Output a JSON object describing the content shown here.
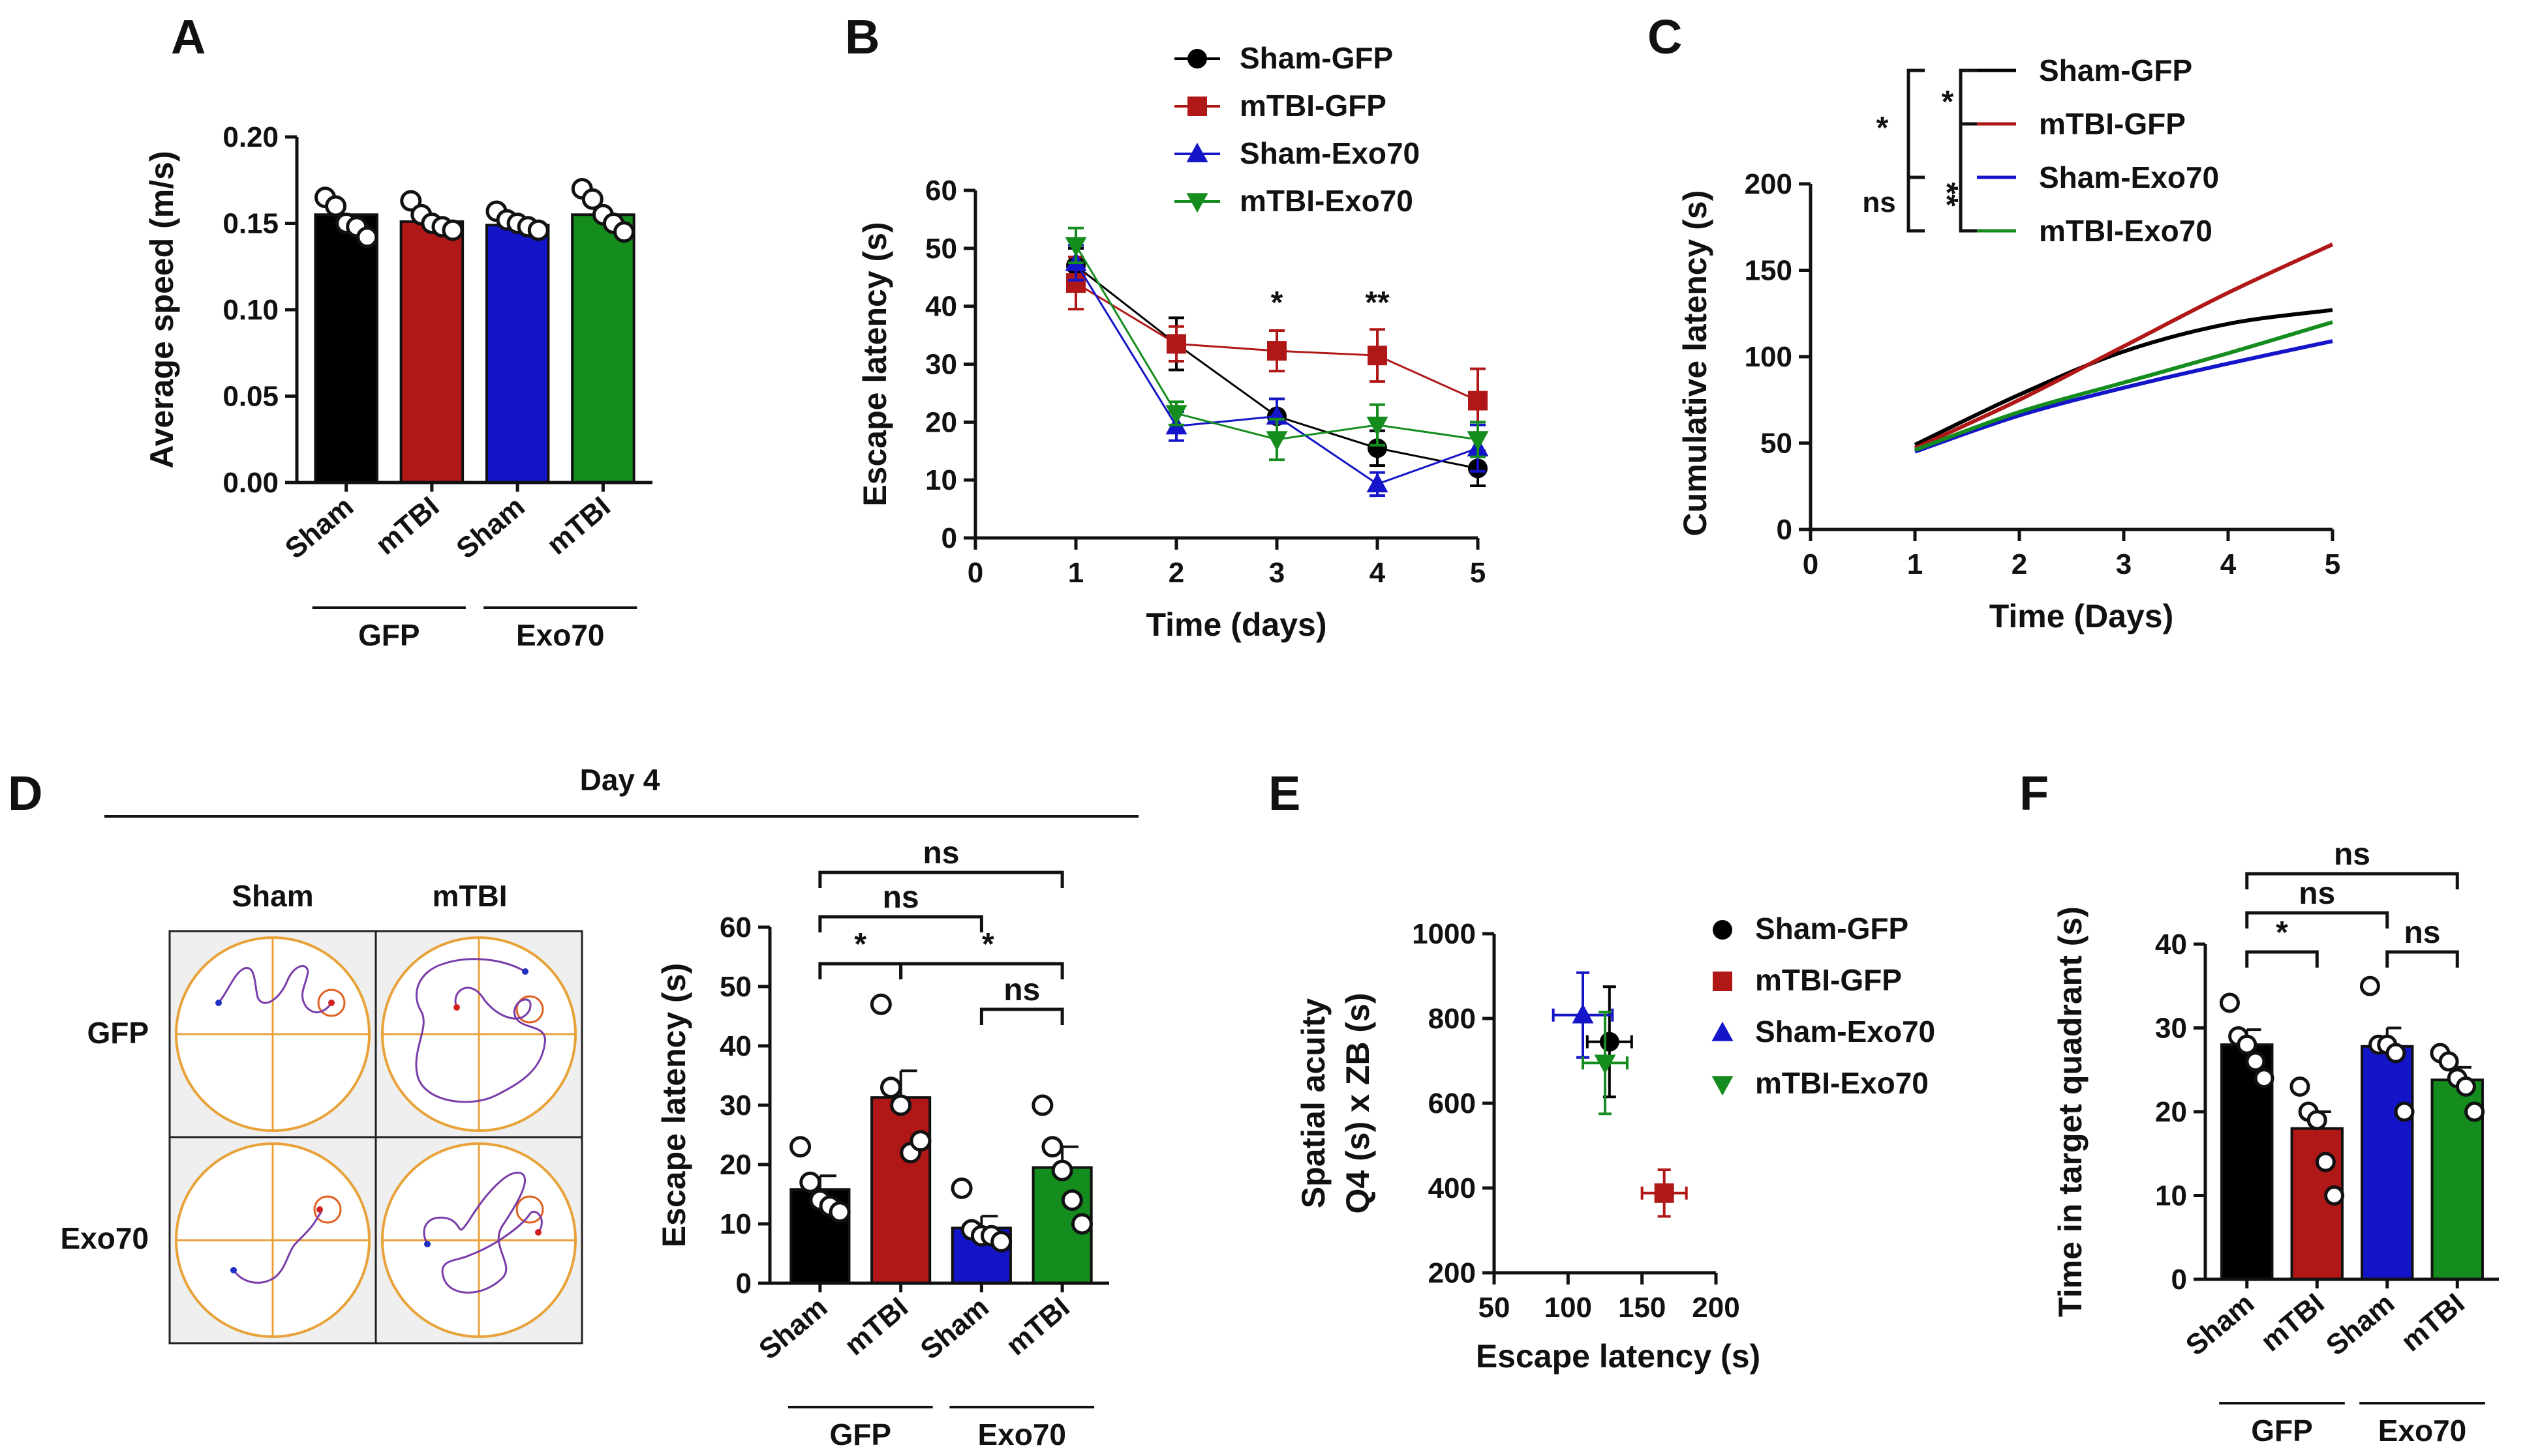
{
  "colors": {
    "sham_gfp": "#000000",
    "mtbi_gfp": "#b01818",
    "sham_exo70": "#1414c8",
    "mtbi_exo70": "#148c1e"
  },
  "panel_labels": {
    "a": "A",
    "b": "B",
    "c": "C",
    "d": "D",
    "e": "E",
    "f": "F"
  },
  "group_labels": {
    "sham": "Sham",
    "mtbi": "mTBI",
    "gfp": "GFP",
    "exo70": "Exo70",
    "day4": "Day 4"
  },
  "chart_data": [
    {
      "id": "A",
      "type": "bar",
      "ylabel": "Average speed (m/s)",
      "ylim": [
        0,
        0.2
      ],
      "yticks": [
        "0.00",
        "0.05",
        "0.10",
        "0.15",
        "0.20"
      ],
      "categories": [
        "Sham",
        "mTBI",
        "Sham",
        "mTBI"
      ],
      "groups": [
        "GFP",
        "GFP",
        "Exo70",
        "Exo70"
      ],
      "values": [
        0.155,
        0.151,
        0.149,
        0.155
      ],
      "points": [
        [
          0.165,
          0.16,
          0.15,
          0.148,
          0.142
        ],
        [
          0.163,
          0.155,
          0.15,
          0.148,
          0.146
        ],
        [
          0.157,
          0.152,
          0.15,
          0.148,
          0.146
        ],
        [
          0.17,
          0.164,
          0.155,
          0.15,
          0.145
        ]
      ]
    },
    {
      "id": "B",
      "type": "line",
      "xlabel": "Time (days)",
      "ylabel": "Escape latency (s)",
      "xlim": [
        0,
        5
      ],
      "ylim": [
        0,
        60
      ],
      "xticks": [
        "0",
        "1",
        "2",
        "3",
        "4",
        "5"
      ],
      "yticks": [
        "0",
        "10",
        "20",
        "30",
        "40",
        "50",
        "60"
      ],
      "x": [
        1,
        2,
        3,
        4,
        5
      ],
      "series": [
        {
          "name": "Sham-GFP",
          "marker": "circle",
          "values": [
            47,
            33.5,
            21,
            15.5,
            12
          ],
          "errors": [
            3,
            4.5,
            3,
            3,
            3
          ]
        },
        {
          "name": "mTBI-GFP",
          "marker": "square",
          "values": [
            44,
            33.5,
            32.3,
            31.5,
            23.7
          ],
          "errors": [
            4.5,
            3,
            3.5,
            4.5,
            5.5
          ]
        },
        {
          "name": "Sham-Exo70",
          "marker": "triangle-up",
          "values": [
            47.5,
            19.3,
            21,
            9.3,
            15.5
          ],
          "errors": [
            3,
            2.5,
            3,
            2,
            4
          ]
        },
        {
          "name": "mTBI-Exo70",
          "marker": "triangle-down",
          "values": [
            50.5,
            21.5,
            17,
            19.5,
            17
          ],
          "errors": [
            3,
            2,
            3.5,
            3.5,
            3
          ]
        }
      ],
      "annotations": [
        {
          "x": 3,
          "text": "*"
        },
        {
          "x": 4,
          "text": "**"
        }
      ]
    },
    {
      "id": "C",
      "type": "line",
      "xlabel": "Time (Days)",
      "ylabel": "Cumulative latency (s)",
      "xlim": [
        0,
        5
      ],
      "ylim": [
        0,
        200
      ],
      "xticks": [
        "0",
        "1",
        "2",
        "3",
        "4",
        "5"
      ],
      "yticks": [
        "0",
        "50",
        "100",
        "150",
        "200"
      ],
      "x": [
        1,
        2,
        3,
        4,
        5
      ],
      "series": [
        {
          "name": "Sham-GFP",
          "values": [
            49,
            78,
            103,
            119,
            127
          ]
        },
        {
          "name": "mTBI-GFP",
          "values": [
            47,
            75,
            106,
            137,
            165
          ]
        },
        {
          "name": "Sham-Exo70",
          "values": [
            45,
            66,
            82,
            96,
            109
          ]
        },
        {
          "name": "mTBI-Exo70",
          "values": [
            46,
            68,
            85,
            102,
            120
          ]
        }
      ],
      "significance": [
        {
          "pair": "Sham-GFP vs mTBI-GFP",
          "text": "*"
        },
        {
          "pair": "mTBI-GFP vs Sham-Exo70",
          "text": "**"
        },
        {
          "pair": "Sham-GFP vs Sham-Exo70",
          "text": "*"
        },
        {
          "pair": "Sham-GFP vs mTBI-Exo70",
          "text": "ns"
        }
      ]
    },
    {
      "id": "D",
      "type": "bar",
      "ylabel": "Escape latency (s)",
      "ylim": [
        0,
        60
      ],
      "yticks": [
        "0",
        "10",
        "20",
        "30",
        "40",
        "50",
        "60"
      ],
      "categories": [
        "Sham",
        "mTBI",
        "Sham",
        "mTBI"
      ],
      "groups": [
        "GFP",
        "GFP",
        "Exo70",
        "Exo70"
      ],
      "values": [
        15.8,
        31.3,
        9.3,
        19.5
      ],
      "errors": [
        2.3,
        4.5,
        2.0,
        3.5
      ],
      "points": [
        [
          23,
          17,
          14,
          13,
          12
        ],
        [
          47,
          33,
          30,
          22,
          24
        ],
        [
          16,
          9,
          8,
          8,
          7
        ],
        [
          30,
          23,
          19,
          14,
          10
        ]
      ],
      "significance": [
        {
          "from": 0,
          "to": 3,
          "text": "ns"
        },
        {
          "from": 0,
          "to": 2,
          "text": "ns"
        },
        {
          "from": 0,
          "to": 1,
          "text": "*"
        },
        {
          "from": 1,
          "to": 3,
          "text": "*"
        },
        {
          "from": 2,
          "to": 3,
          "text": "ns"
        }
      ]
    },
    {
      "id": "E",
      "type": "scatter",
      "xlabel": "Escape latency (s)",
      "ylabel_line1": "Spatial acuity",
      "ylabel_line2": "Q4 (s) x ZB (s)",
      "xlim": [
        50,
        200
      ],
      "ylim": [
        200,
        1000
      ],
      "xticks": [
        "50",
        "100",
        "150",
        "200"
      ],
      "yticks": [
        "200",
        "400",
        "600",
        "800",
        "1000"
      ],
      "series": [
        {
          "name": "Sham-GFP",
          "marker": "circle",
          "x": 128,
          "y": 745,
          "xerr": 15,
          "yerr": 130
        },
        {
          "name": "mTBI-GFP",
          "marker": "square",
          "x": 165,
          "y": 388,
          "xerr": 15,
          "yerr": 55
        },
        {
          "name": "Sham-Exo70",
          "marker": "triangle-up",
          "x": 110,
          "y": 808,
          "xerr": 20,
          "yerr": 100
        },
        {
          "name": "mTBI-Exo70",
          "marker": "triangle-down",
          "x": 125,
          "y": 695,
          "xerr": 15,
          "yerr": 120
        }
      ]
    },
    {
      "id": "F",
      "type": "bar",
      "ylabel": "Time in target quadrant (s)",
      "ylim": [
        0,
        40
      ],
      "yticks": [
        "0",
        "10",
        "20",
        "30",
        "40"
      ],
      "categories": [
        "Sham",
        "mTBI",
        "Sham",
        "mTBI"
      ],
      "groups": [
        "GFP",
        "GFP",
        "Exo70",
        "Exo70"
      ],
      "values": [
        28,
        18,
        27.8,
        23.8
      ],
      "errors": [
        1.8,
        2,
        2.2,
        1.5
      ],
      "points": [
        [
          33,
          29,
          28,
          26,
          24
        ],
        [
          23,
          20,
          19,
          14,
          10
        ],
        [
          35,
          28,
          28,
          27,
          20
        ],
        [
          27,
          26,
          24,
          23,
          20
        ]
      ],
      "significance": [
        {
          "from": 0,
          "to": 3,
          "text": "ns"
        },
        {
          "from": 0,
          "to": 2,
          "text": "ns"
        },
        {
          "from": 0,
          "to": 1,
          "text": "*"
        },
        {
          "from": 2,
          "to": 3,
          "text": "ns"
        }
      ]
    }
  ]
}
